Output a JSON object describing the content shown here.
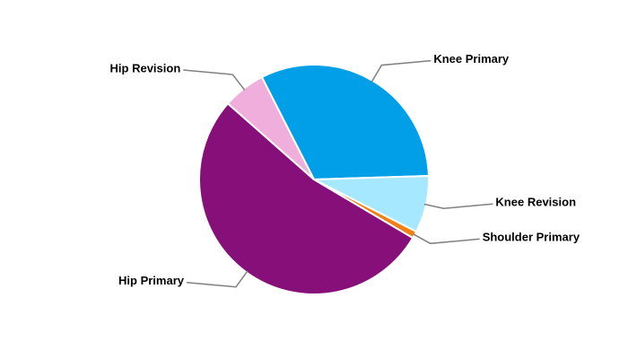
{
  "chart_data": {
    "type": "pie",
    "categories": [
      "Knee Primary",
      "Knee Revision",
      "Shoulder Primary",
      "Hip Primary",
      "Hip Revision"
    ],
    "values": [
      32,
      8,
      1,
      53,
      6
    ],
    "colors": [
      "#009fe8",
      "#a6e8ff",
      "#f07f16",
      "#870f7a",
      "#f0aedc"
    ]
  }
}
